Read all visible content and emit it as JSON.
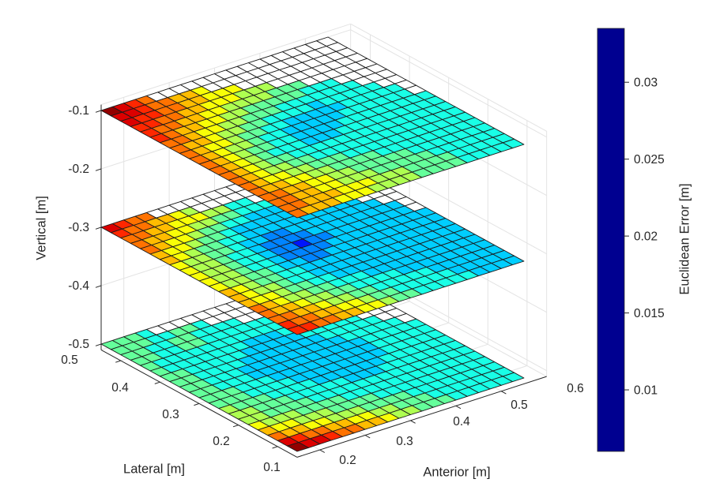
{
  "figure": {
    "background": "#ffffff",
    "axis_color": "#262626",
    "grid_color": "#e3e3e3",
    "cell_edge_color": "#1a1a1a",
    "nan_cell_color": "#ffffff"
  },
  "axes": {
    "vertical_label": "Vertical [m]",
    "lateral_label": "Lateral [m]",
    "anterior_label": "Anterior [m]",
    "vertical_ticks": [
      "-0.1",
      "-0.2",
      "-0.3",
      "-0.4",
      "-0.5"
    ],
    "lateral_ticks": [
      "0.5",
      "0.4",
      "0.3",
      "0.2",
      "0.1"
    ],
    "anterior_ticks": [
      "0.2",
      "0.3",
      "0.4",
      "0.5",
      "0.6"
    ]
  },
  "colorbar": {
    "label": "Euclidean Error [m]",
    "ticks": [
      "0.03",
      "0.025",
      "0.02",
      "0.015",
      "0.01"
    ],
    "tick_values": [
      0.03,
      0.025,
      0.02,
      0.015,
      0.01
    ],
    "min": 0.006,
    "max": 0.0335,
    "colormap": "jet"
  },
  "chart_data": {
    "type": "heatmap",
    "subtype": "3d-horizontal-slices",
    "x_axis": {
      "label": "Anterior [m]",
      "range": [
        0.15,
        0.65
      ],
      "box_max": 0.7,
      "ticks": [
        0.2,
        0.3,
        0.4,
        0.5,
        0.6
      ]
    },
    "y_axis": {
      "label": "Lateral [m]",
      "range": [
        0.05,
        0.55
      ],
      "ticks": [
        0.5,
        0.4,
        0.3,
        0.2,
        0.1
      ]
    },
    "z_axis": {
      "label": "Vertical [m]",
      "ticks": [
        -0.1,
        -0.2,
        -0.3,
        -0.4,
        -0.5
      ],
      "box": [
        -0.51,
        -0.09
      ]
    },
    "color_axis": {
      "label": "Euclidean Error [m]",
      "range": [
        0.006,
        0.0335
      ],
      "colormap": "jet"
    },
    "cell_size": 0.025,
    "value_key": {
      "1": 0.01,
      "2": 0.013,
      "3": 0.015,
      "4": 0.017,
      "5": 0.019,
      "6": 0.021,
      "7": 0.023,
      "8": 0.025,
      "9": 0.027,
      "a": 0.029,
      "b": 0.031,
      "c": 0.033,
      ".": null
    },
    "slices": [
      {
        "z": -0.1,
        "rows": [
          "cba9................",
          "bba99887............",
          "baa9988777..........",
          "aa9988777666........",
          "a9988776666555......",
          "a988776655555444....",
          "99877665554444444...",
          "988766554444344444..",
          "9877655443333344444.",
          "9876654433333444444.",
          "98765544333344444444",
          "98765444333444444444",
          "98765544444444444444",
          "98766554444444444444",
          "98776655544444444444",
          "98877665555444444444",
          "99887766555554444444",
          "99887766655555444444",
          "99888777666555544444",
          "98887776666555544444"
        ]
      },
      {
        "z": -0.3,
        "rows": [
          "ba99................",
          "a998876.............",
          "99887776644.........",
          "98877665544433......",
          "987765544333333.....",
          "8776554333333333....",
          "87655443333333333...",
          "766554332233333333..",
          "7665443222233333333.",
          "7665443221223333333.",
          "76654432222333333333",
          "76655433223333333333",
          "87655443333333333333",
          "87665443333333333333",
          "87765544333333333333",
          "98766554443333333333",
          "98876655444433333333",
          "99887665544444333333",
          "a9988776554444433333",
          "aa998877655444443333"
        ]
      },
      {
        "z": -0.5,
        "rows": [
          "5554................",
          "55544554......444...",
          "5544554444...44444..",
          "554455444444.444444.",
          "54444444444444......",
          "5444444433344444....",
          "55444443333344444...",
          "554444333333344444..",
          "5544433333333344444.",
          "55444333333333344444",
          "55544433333333344444",
          "55544443333333344444",
          "65554444333333444444",
          "66555444443334444444",
          "66555544444444444444",
          "76665555444444444444",
          "87766655554444444444",
          "98877666555544444444",
          "ba998877665554444444",
          "cbba9988766555444444"
        ]
      }
    ]
  }
}
